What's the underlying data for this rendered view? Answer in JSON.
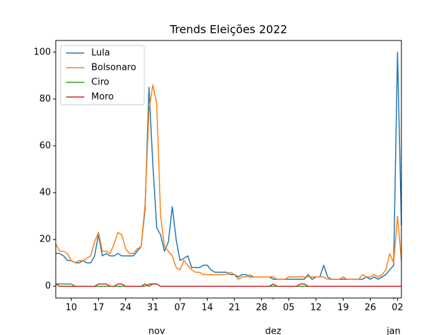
{
  "chart_data": {
    "type": "line",
    "title": "Trends Eleições 2022",
    "x": [
      "10-06",
      "10-07",
      "10-08",
      "10-09",
      "10-10",
      "10-11",
      "10-12",
      "10-13",
      "10-14",
      "10-15",
      "10-16",
      "10-17",
      "10-18",
      "10-19",
      "10-20",
      "10-21",
      "10-22",
      "10-23",
      "10-24",
      "10-25",
      "10-26",
      "10-27",
      "10-28",
      "10-29",
      "10-30",
      "10-31",
      "11-01",
      "11-02",
      "11-03",
      "11-04",
      "11-05",
      "11-06",
      "11-07",
      "11-08",
      "11-09",
      "11-10",
      "11-11",
      "11-12",
      "11-13",
      "11-14",
      "11-15",
      "11-16",
      "11-17",
      "11-18",
      "11-19",
      "11-20",
      "11-21",
      "11-22",
      "11-23",
      "11-24",
      "11-25",
      "11-26",
      "11-27",
      "11-28",
      "11-29",
      "11-30",
      "12-01",
      "12-02",
      "12-03",
      "12-04",
      "12-05",
      "12-06",
      "12-07",
      "12-08",
      "12-09",
      "12-10",
      "12-11",
      "12-12",
      "12-13",
      "12-14",
      "12-15",
      "12-16",
      "12-17",
      "12-18",
      "12-19",
      "12-20",
      "12-21",
      "12-22",
      "12-23",
      "12-24",
      "12-25",
      "12-26",
      "12-27",
      "12-28",
      "12-29",
      "12-30",
      "12-31",
      "01-01",
      "01-02",
      "01-03"
    ],
    "xlim": [
      "10-06",
      "01-03"
    ],
    "xticks": [
      {
        "value": "10-10",
        "label": "10"
      },
      {
        "value": "10-17",
        "label": "17"
      },
      {
        "value": "10-24",
        "label": "24"
      },
      {
        "value": "10-31",
        "label": "31"
      },
      {
        "value": "11-07",
        "label": "07"
      },
      {
        "value": "11-14",
        "label": "14"
      },
      {
        "value": "11-21",
        "label": "21"
      },
      {
        "value": "11-28",
        "label": "28"
      },
      {
        "value": "12-05",
        "label": "05"
      },
      {
        "value": "12-12",
        "label": "12"
      },
      {
        "value": "12-19",
        "label": "19"
      },
      {
        "value": "12-26",
        "label": "26"
      },
      {
        "value": "01-02",
        "label": "02"
      }
    ],
    "x_month_ticks": [
      {
        "value": "11-01",
        "label": "nov"
      },
      {
        "value": "12-01",
        "label": "dez"
      },
      {
        "value": "01-01",
        "label": "jan"
      }
    ],
    "ylim": [
      -5,
      105
    ],
    "yticks": [
      0,
      20,
      40,
      60,
      80,
      100
    ],
    "legend": "upper left",
    "series": [
      {
        "name": "Lula",
        "color": "#1f77b4",
        "values": [
          14,
          14,
          13,
          11,
          11,
          10,
          10,
          11,
          10,
          10,
          13,
          22,
          13,
          14,
          13,
          13,
          14,
          13,
          13,
          13,
          13,
          15,
          17,
          33,
          85,
          52,
          25,
          22,
          15,
          19,
          34,
          20,
          11,
          12,
          13,
          8,
          8,
          8,
          9,
          9,
          7,
          6,
          6,
          6,
          6,
          5,
          5,
          4,
          5,
          5,
          4,
          4,
          4,
          4,
          4,
          4,
          3,
          3,
          3,
          3,
          3,
          3,
          3,
          3,
          3,
          5,
          3,
          4,
          4,
          9,
          4,
          3,
          3,
          3,
          3,
          3,
          3,
          3,
          3,
          3,
          4,
          3,
          4,
          3,
          4,
          5,
          7,
          9,
          100,
          26
        ]
      },
      {
        "name": "Bolsonaro",
        "color": "#ff7f0e",
        "values": [
          18,
          15,
          15,
          14,
          11,
          10,
          11,
          11,
          12,
          13,
          19,
          23,
          15,
          15,
          14,
          18,
          23,
          22,
          16,
          14,
          14,
          16,
          17,
          35,
          75,
          86,
          78,
          30,
          17,
          15,
          13,
          8,
          7,
          11,
          9,
          7,
          6,
          6,
          5,
          5,
          5,
          5,
          5,
          5,
          5,
          6,
          5,
          3,
          4,
          4,
          5,
          4,
          4,
          4,
          4,
          4,
          4,
          3,
          3,
          3,
          4,
          4,
          4,
          4,
          4,
          4,
          4,
          4,
          4,
          4,
          3,
          3,
          3,
          3,
          4,
          3,
          3,
          3,
          3,
          5,
          4,
          4,
          5,
          4,
          5,
          7,
          14,
          10,
          30,
          11
        ]
      },
      {
        "name": "Ciro",
        "color": "#2ca02c",
        "values": [
          1,
          1,
          1,
          1,
          1,
          0,
          0,
          0,
          0,
          0,
          0,
          0,
          0,
          0,
          0,
          0,
          0,
          0,
          0,
          0,
          0,
          0,
          0,
          0,
          1,
          1,
          1,
          0,
          0,
          0,
          0,
          0,
          0,
          0,
          0,
          0,
          0,
          0,
          0,
          0,
          0,
          0,
          0,
          0,
          0,
          0,
          0,
          0,
          0,
          0,
          0,
          0,
          0,
          0,
          0,
          0,
          0,
          0,
          0,
          0,
          0,
          0,
          0,
          0,
          0,
          0,
          0,
          0,
          0,
          0,
          0,
          0,
          0,
          0,
          0,
          0,
          0,
          0,
          0,
          0,
          0,
          0,
          0,
          0,
          0,
          0,
          0,
          0,
          0,
          0
        ]
      },
      {
        "name": "Moro",
        "color": "#d62728",
        "values": [
          1,
          0,
          0,
          0,
          0,
          0,
          0,
          0,
          0,
          0,
          0,
          1,
          1,
          1,
          0,
          0,
          1,
          1,
          0,
          0,
          0,
          0,
          0,
          1,
          0,
          1,
          1,
          0,
          0,
          0,
          0,
          0,
          0,
          0,
          0,
          0,
          0,
          0,
          0,
          0,
          0,
          0,
          0,
          0,
          0,
          0,
          0,
          0,
          0,
          0,
          0,
          0,
          0,
          0,
          0,
          0,
          1,
          0,
          0,
          0,
          0,
          0,
          0,
          1,
          1,
          0,
          0,
          0,
          0,
          0,
          0,
          0,
          0,
          0,
          0,
          0,
          0,
          0,
          0,
          0,
          0,
          0,
          0,
          0,
          0,
          0,
          0,
          0,
          0,
          0
        ]
      }
    ]
  }
}
